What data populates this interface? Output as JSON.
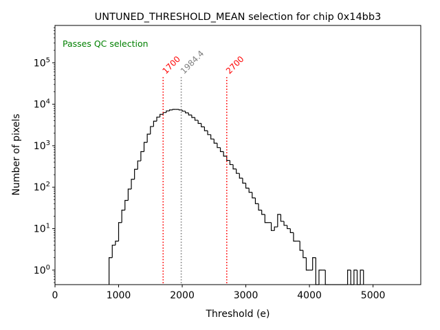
{
  "chart_data": {
    "type": "histogram",
    "title": "UNTUNED_THRESHOLD_MEAN selection for chip 0x14bb3",
    "xlabel": "Threshold (e)",
    "ylabel": "Number of pixels",
    "xlim": [
      0,
      5750
    ],
    "ylim_log10": [
      -0.35,
      5.9
    ],
    "yscale": "log",
    "xticks": [
      {
        "value": 0,
        "label": "0"
      },
      {
        "value": 1000,
        "label": "1000"
      },
      {
        "value": 2000,
        "label": "2000"
      },
      {
        "value": 3000,
        "label": "3000"
      },
      {
        "value": 4000,
        "label": "4000"
      },
      {
        "value": 5000,
        "label": "5000"
      }
    ],
    "yticks": [
      {
        "exp": 0,
        "base": "10",
        "sup": "0"
      },
      {
        "exp": 1,
        "base": "10",
        "sup": "1"
      },
      {
        "exp": 2,
        "base": "10",
        "sup": "2"
      },
      {
        "exp": 3,
        "base": "10",
        "sup": "3"
      },
      {
        "exp": 4,
        "base": "10",
        "sup": "4"
      },
      {
        "exp": 5,
        "base": "10",
        "sup": "5"
      }
    ],
    "bin_width": 50,
    "histogram": {
      "bin_start": 850,
      "counts": [
        2,
        4,
        5,
        14,
        28,
        48,
        90,
        155,
        270,
        430,
        720,
        1200,
        1900,
        2900,
        3900,
        4900,
        5700,
        6300,
        6900,
        7300,
        7500,
        7500,
        7300,
        6800,
        6200,
        5500,
        4800,
        4100,
        3450,
        2850,
        2300,
        1850,
        1450,
        1150,
        900,
        720,
        560,
        440,
        350,
        275,
        215,
        165,
        125,
        95,
        75,
        55,
        40,
        28,
        22,
        14,
        14,
        9,
        11,
        22,
        15,
        12,
        10,
        8,
        5,
        5,
        3,
        2,
        1,
        1,
        2,
        0,
        1,
        1,
        0,
        0,
        0,
        0,
        0,
        0,
        0,
        1,
        0,
        1,
        0,
        1
      ]
    },
    "annotation_text": "Passes QC selection",
    "vlines": [
      {
        "x": 1700,
        "label": "1700",
        "color": "#ff0000"
      },
      {
        "x": 1984.4,
        "label": "1984.4",
        "color": "#808080"
      },
      {
        "x": 2700,
        "label": "2700",
        "color": "#ff0000"
      }
    ],
    "colors": {
      "histogram": "#000000",
      "annotation": "#008000"
    }
  }
}
